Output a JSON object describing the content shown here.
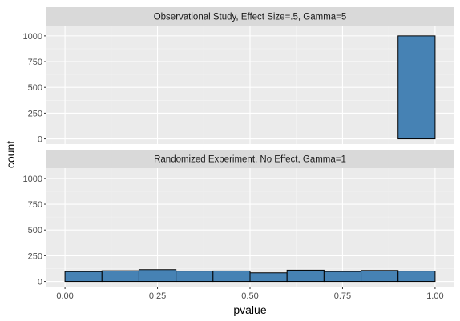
{
  "chart_data": {
    "type": "bar",
    "xlabel": "pvalue",
    "ylabel": "count",
    "xlim": [
      -0.05,
      1.05
    ],
    "ylim": [
      -50,
      1100
    ],
    "x_ticks": [
      {
        "value": 0,
        "label": "0.00"
      },
      {
        "value": 0.25,
        "label": "0.25"
      },
      {
        "value": 0.5,
        "label": "0.50"
      },
      {
        "value": 0.75,
        "label": "0.75"
      },
      {
        "value": 1,
        "label": "1.00"
      }
    ],
    "y_ticks": [
      {
        "value": 0,
        "label": "0"
      },
      {
        "value": 250,
        "label": "250"
      },
      {
        "value": 500,
        "label": "500"
      },
      {
        "value": 750,
        "label": "750"
      },
      {
        "value": 1000,
        "label": "1000"
      }
    ],
    "grid": true,
    "bin_edges": [
      0,
      0.1,
      0.2,
      0.3,
      0.4,
      0.5,
      0.6,
      0.7,
      0.8,
      0.9,
      1.0
    ],
    "fill_color": "#4682B4",
    "stroke_color": "#000000",
    "panel_background": "#EBEBEB",
    "strip_background": "#D9D9D9",
    "panels": [
      {
        "title": "Observational Study, Effect Size=.5, Gamma=5",
        "counts": [
          0,
          0,
          0,
          0,
          0,
          0,
          0,
          0,
          0,
          1000
        ]
      },
      {
        "title": "Randomized Experiment, No Effect, Gamma=1",
        "counts": [
          96,
          104,
          115,
          101,
          102,
          84,
          110,
          97,
          107,
          101
        ]
      }
    ]
  }
}
